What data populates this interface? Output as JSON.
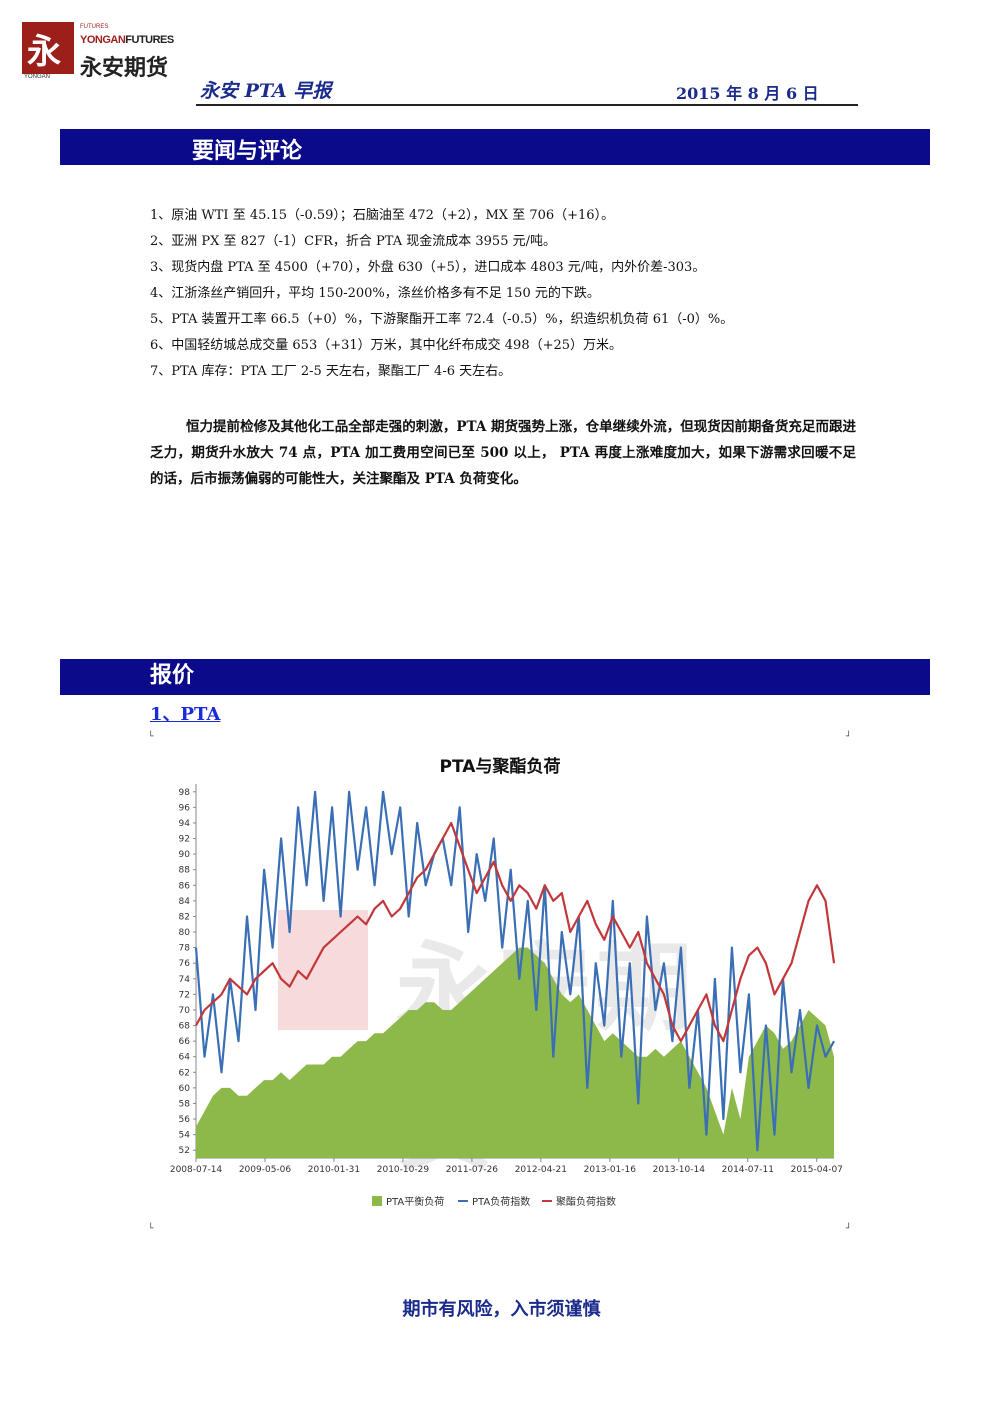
{
  "logo": {
    "glyph": "永",
    "futures_small": "FUTURES",
    "english": "YONGANFUTURES",
    "english_a": "YONGAN",
    "english_b": "FUTURES",
    "chinese": "永安期货",
    "under_text": "YONGAN"
  },
  "header": {
    "title": "永安 PTA 早报",
    "date": "2015 年 8 月 6 日"
  },
  "section1": {
    "title": "要闻与评论",
    "news": [
      "1、原油 WTI 至 45.15（-0.59）；石脑油至 472（+2），MX 至 706（+16）。",
      "2、亚洲 PX 至 827（-1）CFR，折合 PTA 现金流成本 3955 元/吨。",
      "3、现货内盘 PTA 至 4500（+70），外盘 630（+5），进口成本 4803 元/吨，内外价差-303。",
      "4、江浙涤丝产销回升，平均 150-200%，涤丝价格多有不足 150 元的下跌。",
      "5、PTA 装置开工率 66.5（+0）%，下游聚酯开工率 72.4（-0.5）%，织造织机负荷 61（-0）%。",
      "6、中国轻纺城总成交量 653（+31）万米，其中化纤布成交 498（+25）万米。",
      "7、PTA 库存：PTA 工厂 2-5 天左右，聚酯工厂 4-6 天左右。"
    ],
    "commentary": "恒力提前检修及其他化工品全部走强的刺激，PTA 期货强势上涨，仓单继续外流，但现货因前期备货充足而跟进乏力，期货升水放大 74 点，PTA 加工费用空间已至 500 以上， PTA 再度上涨难度加大，如果下游需求回暖不足的话，后市振荡偏弱的可能性大，关注聚酯及 PTA 负荷变化。"
  },
  "section2": {
    "title": "报价",
    "subheading": "1、PTA"
  },
  "chart_data": {
    "type": "line",
    "title": "PTA与聚酯负荷",
    "ylabel": "",
    "xlabel": "",
    "y_tick_labels": [
      "52",
      "54",
      "56",
      "58",
      "60",
      "62",
      "64",
      "66",
      "68",
      "70",
      "72",
      "74",
      "76",
      "78",
      "80",
      "82",
      "84",
      "86",
      "88",
      "90",
      "92",
      "94",
      "96",
      "98"
    ],
    "ylim": [
      51,
      99
    ],
    "x_tick_labels": [
      "2008-07-14",
      "2009-05-06",
      "2010-01-31",
      "2010-10-29",
      "2011-07-26",
      "2012-04-21",
      "2013-01-16",
      "2013-10-14",
      "2014-07-11",
      "2015-04-07"
    ],
    "legend_position": "bottom",
    "watermark": "永安期货",
    "series": [
      {
        "name": "PTA平衡负荷",
        "style": "area",
        "color": "#8db84a",
        "values": [
          55,
          57,
          59,
          60,
          60,
          59,
          59,
          60,
          61,
          61,
          62,
          61,
          62,
          63,
          63,
          63,
          64,
          64,
          65,
          66,
          66,
          67,
          67,
          68,
          69,
          70,
          70,
          71,
          71,
          70,
          70,
          71,
          72,
          73,
          74,
          75,
          76,
          77,
          78,
          78,
          77,
          76,
          74,
          72,
          71,
          72,
          70,
          68,
          66,
          67,
          66,
          65,
          64,
          64,
          65,
          64,
          65,
          66,
          64,
          62,
          60,
          57,
          54,
          60,
          56,
          64,
          66,
          68,
          67,
          65,
          66,
          68,
          70,
          69,
          68,
          64
        ]
      },
      {
        "name": "PTA负荷指数",
        "style": "line",
        "color": "#3a6fb5",
        "values": [
          78,
          64,
          72,
          62,
          74,
          66,
          82,
          70,
          88,
          78,
          92,
          80,
          96,
          86,
          98,
          84,
          96,
          82,
          98,
          88,
          96,
          86,
          98,
          90,
          96,
          82,
          94,
          86,
          90,
          92,
          86,
          96,
          80,
          90,
          84,
          92,
          78,
          88,
          74,
          84,
          70,
          86,
          64,
          80,
          72,
          82,
          60,
          76,
          68,
          84,
          64,
          76,
          58,
          82,
          70,
          76,
          66,
          78,
          60,
          70,
          54,
          74,
          56,
          78,
          62,
          72,
          52,
          68,
          54,
          74,
          62,
          70,
          60,
          68,
          64,
          66
        ]
      },
      {
        "name": "聚酯负荷指数",
        "style": "line",
        "color": "#c2383a",
        "values": [
          68,
          70,
          71,
          72,
          74,
          73,
          72,
          74,
          75,
          76,
          74,
          73,
          75,
          74,
          76,
          78,
          79,
          80,
          81,
          82,
          81,
          83,
          84,
          82,
          83,
          85,
          87,
          88,
          90,
          92,
          94,
          91,
          88,
          85,
          87,
          89,
          86,
          84,
          86,
          85,
          83,
          86,
          84,
          85,
          80,
          82,
          84,
          81,
          79,
          82,
          80,
          78,
          80,
          76,
          74,
          72,
          68,
          66,
          68,
          70,
          72,
          68,
          66,
          70,
          74,
          77,
          78,
          76,
          72,
          74,
          76,
          80,
          84,
          86,
          84,
          76
        ]
      }
    ]
  },
  "footer": {
    "warning": "期市有风险，入市须谨慎"
  },
  "marks": {
    "corner": "└",
    "small": "┘"
  }
}
